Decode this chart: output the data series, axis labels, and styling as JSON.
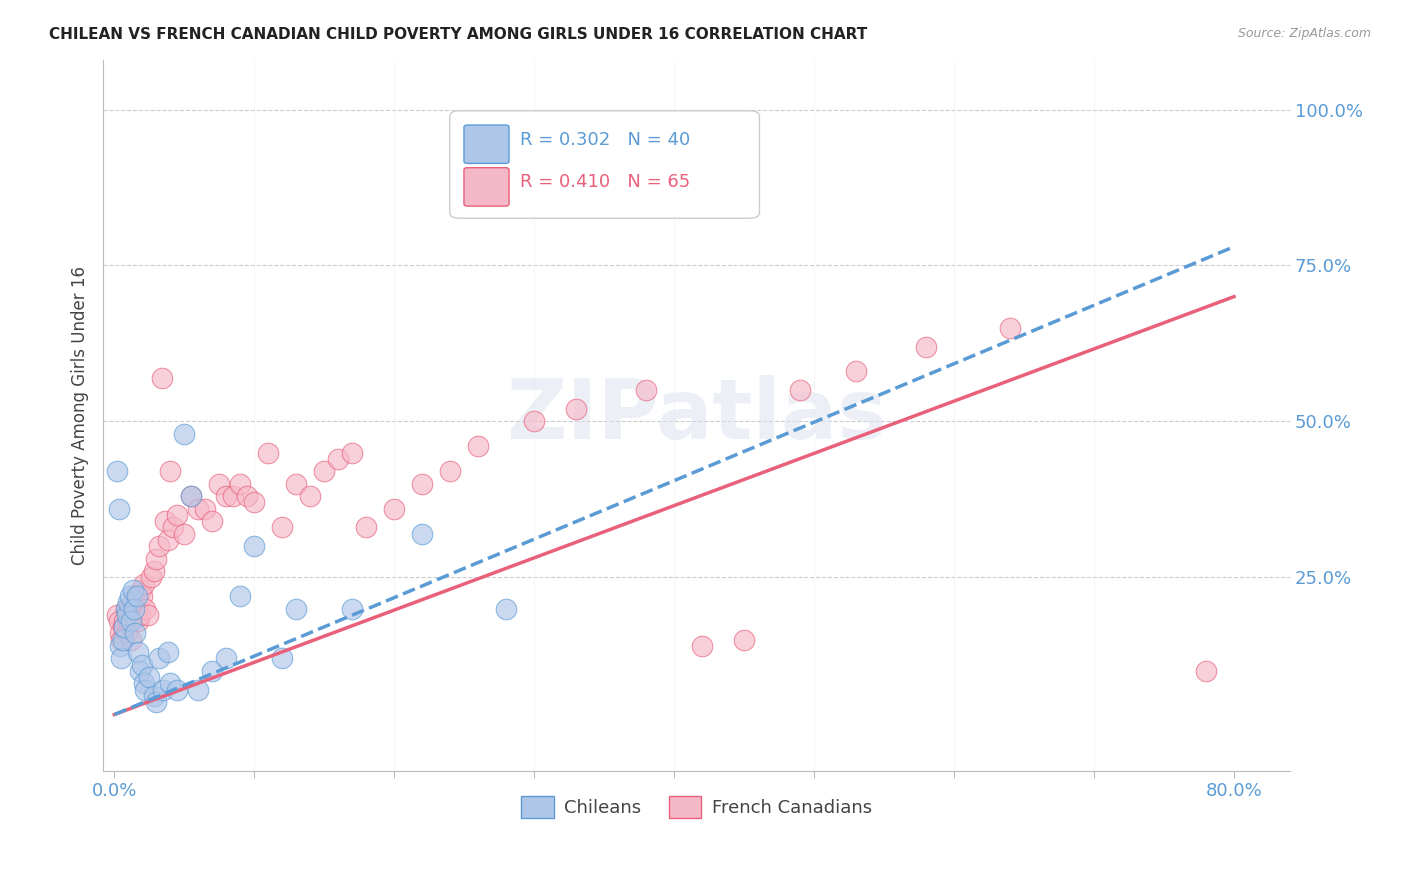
{
  "title": "CHILEAN VS FRENCH CANADIAN CHILD POVERTY AMONG GIRLS UNDER 16 CORRELATION CHART",
  "source": "Source: ZipAtlas.com",
  "ylabel": "Child Poverty Among Girls Under 16",
  "chilean_R": 0.302,
  "chilean_N": 40,
  "french_R": 0.41,
  "french_N": 65,
  "chilean_color": "#aec6e8",
  "french_color": "#f5b8c8",
  "chilean_line_color": "#5b9bd5",
  "french_line_color": "#e8607a",
  "xlim": [
    -0.008,
    0.84
  ],
  "ylim": [
    -0.06,
    1.08
  ],
  "watermark": "ZIPatlas",
  "chileans_x": [
    0.002,
    0.003,
    0.004,
    0.005,
    0.006,
    0.007,
    0.008,
    0.009,
    0.01,
    0.011,
    0.012,
    0.013,
    0.014,
    0.015,
    0.016,
    0.017,
    0.018,
    0.02,
    0.021,
    0.022,
    0.025,
    0.028,
    0.03,
    0.032,
    0.035,
    0.038,
    0.04,
    0.045,
    0.05,
    0.055,
    0.06,
    0.07,
    0.08,
    0.09,
    0.1,
    0.12,
    0.13,
    0.17,
    0.22,
    0.28
  ],
  "chileans_y": [
    0.42,
    0.36,
    0.14,
    0.12,
    0.15,
    0.17,
    0.2,
    0.19,
    0.21,
    0.22,
    0.18,
    0.23,
    0.2,
    0.16,
    0.22,
    0.13,
    0.1,
    0.11,
    0.08,
    0.07,
    0.09,
    0.06,
    0.05,
    0.12,
    0.07,
    0.13,
    0.08,
    0.07,
    0.48,
    0.38,
    0.07,
    0.1,
    0.12,
    0.22,
    0.3,
    0.12,
    0.2,
    0.2,
    0.32,
    0.2
  ],
  "french_x": [
    0.002,
    0.003,
    0.004,
    0.005,
    0.006,
    0.007,
    0.008,
    0.009,
    0.01,
    0.011,
    0.012,
    0.013,
    0.014,
    0.015,
    0.016,
    0.017,
    0.018,
    0.019,
    0.02,
    0.021,
    0.022,
    0.024,
    0.026,
    0.028,
    0.03,
    0.032,
    0.034,
    0.036,
    0.038,
    0.04,
    0.042,
    0.045,
    0.05,
    0.055,
    0.06,
    0.065,
    0.07,
    0.075,
    0.08,
    0.085,
    0.09,
    0.095,
    0.1,
    0.11,
    0.12,
    0.13,
    0.14,
    0.15,
    0.16,
    0.17,
    0.18,
    0.2,
    0.22,
    0.24,
    0.26,
    0.3,
    0.33,
    0.38,
    0.42,
    0.45,
    0.49,
    0.53,
    0.58,
    0.64,
    0.78
  ],
  "french_y": [
    0.19,
    0.18,
    0.16,
    0.15,
    0.17,
    0.18,
    0.2,
    0.16,
    0.18,
    0.2,
    0.15,
    0.21,
    0.19,
    0.22,
    0.2,
    0.18,
    0.19,
    0.23,
    0.22,
    0.24,
    0.2,
    0.19,
    0.25,
    0.26,
    0.28,
    0.3,
    0.57,
    0.34,
    0.31,
    0.42,
    0.33,
    0.35,
    0.32,
    0.38,
    0.36,
    0.36,
    0.34,
    0.4,
    0.38,
    0.38,
    0.4,
    0.38,
    0.37,
    0.45,
    0.33,
    0.4,
    0.38,
    0.42,
    0.44,
    0.45,
    0.33,
    0.36,
    0.4,
    0.42,
    0.46,
    0.5,
    0.52,
    0.55,
    0.14,
    0.15,
    0.55,
    0.58,
    0.62,
    0.65,
    0.1
  ]
}
